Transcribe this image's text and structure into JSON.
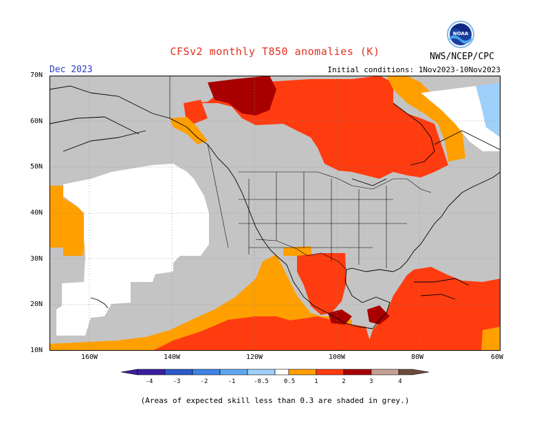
{
  "header": {
    "title": "CFSv2 monthly T850 anomalies (K)",
    "month": "Dec 2023",
    "agency": "NWS/NCEP/CPC",
    "initial_conditions": "Initial conditions: 1Nov2023-10Nov2023",
    "logo_text": "NOAA"
  },
  "axes": {
    "lat_labels": [
      "70N",
      "60N",
      "50N",
      "40N",
      "30N",
      "20N",
      "10N"
    ],
    "lon_labels": [
      "160W",
      "140W",
      "120W",
      "100W",
      "80W",
      "60W"
    ]
  },
  "colorbar": {
    "labels": [
      "-4",
      "-3",
      "-2",
      "-1",
      "-0.5",
      "0.5",
      "1",
      "2",
      "3",
      "4"
    ],
    "colors": [
      "#3b1ea0",
      "#2a5ac9",
      "#3f84e6",
      "#5ea7f0",
      "#9fd0fa",
      "#ffffff",
      "#ff9f00",
      "#ff3c10",
      "#a80000",
      "#c89f94",
      "#6b4a3c"
    ]
  },
  "note": "(Areas of expected skill less than 0.3 are shaded in grey.)",
  "colors": {
    "skill_grey": "#c4c4c4",
    "anom_0_5_1": "#ff9f00",
    "anom_1_2": "#ff3c10",
    "anom_2_3": "#a80000",
    "neutral": "#ffffff",
    "neg_light": "#9fd0fa",
    "title_red": "#e0301e",
    "month_blue": "#2a3bc9"
  }
}
